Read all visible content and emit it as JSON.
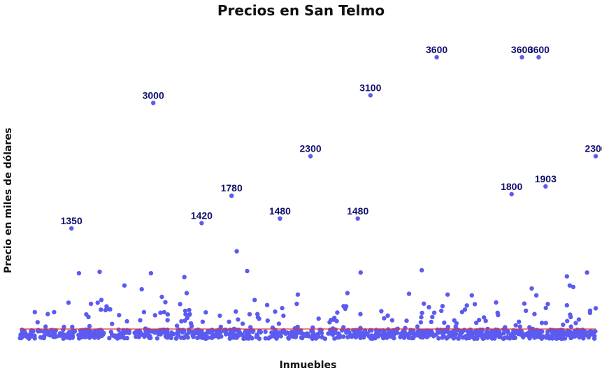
{
  "chart_data": {
    "type": "scatter",
    "title": "Precios en San Telmo",
    "xlabel": "Inmuebles",
    "ylabel": "Precio en miles de dólares",
    "xlim": [
      0,
      1000
    ],
    "ylim": [
      -80,
      3900
    ],
    "grid": false,
    "legend": "none",
    "colors": {
      "points": "#5b5bf0",
      "labels": "#10106b",
      "reference_line": "#e03030"
    },
    "reference_line": {
      "y": 0
    },
    "labeled_points": [
      {
        "x": 90,
        "y": 1350,
        "label": "1350"
      },
      {
        "x": 232,
        "y": 3000,
        "label": "3000"
      },
      {
        "x": 316,
        "y": 1420,
        "label": "1420"
      },
      {
        "x": 368,
        "y": 1780,
        "label": "1780"
      },
      {
        "x": 452,
        "y": 1480,
        "label": "1480"
      },
      {
        "x": 505,
        "y": 2300,
        "label": "2300"
      },
      {
        "x": 587,
        "y": 1480,
        "label": "1480"
      },
      {
        "x": 609,
        "y": 3100,
        "label": "3100"
      },
      {
        "x": 724,
        "y": 3600,
        "label": "3600"
      },
      {
        "x": 854,
        "y": 1800,
        "label": "1800"
      },
      {
        "x": 872,
        "y": 3600,
        "label": "3600"
      },
      {
        "x": 901,
        "y": 3600,
        "label": "3600"
      },
      {
        "x": 913,
        "y": 1903,
        "label": "1903"
      },
      {
        "x": 1000,
        "y": 2300,
        "label": "2300"
      }
    ],
    "points": [
      {
        "x": 103,
        "y": 760
      },
      {
        "x": 139,
        "y": 780
      },
      {
        "x": 228,
        "y": 760
      },
      {
        "x": 286,
        "y": 710
      },
      {
        "x": 395,
        "y": 790
      },
      {
        "x": 377,
        "y": 1050
      },
      {
        "x": 698,
        "y": 800
      },
      {
        "x": 592,
        "y": 770
      },
      {
        "x": 950,
        "y": 720
      },
      {
        "x": 985,
        "y": 770
      },
      {
        "x": 961,
        "y": 580
      },
      {
        "x": 212,
        "y": 550
      },
      {
        "x": 182,
        "y": 600
      },
      {
        "x": 247,
        "y": 450
      },
      {
        "x": 290,
        "y": 500
      },
      {
        "x": 408,
        "y": 410
      },
      {
        "x": 483,
        "y": 480
      },
      {
        "x": 569,
        "y": 500
      },
      {
        "x": 676,
        "y": 490
      },
      {
        "x": 743,
        "y": 480
      },
      {
        "x": 785,
        "y": 470
      },
      {
        "x": 889,
        "y": 560
      },
      {
        "x": 897,
        "y": 470
      },
      {
        "x": 955,
        "y": 600
      },
      {
        "x": 142,
        "y": 410
      },
      {
        "x": 60,
        "y": 250
      },
      {
        "x": 1000,
        "y": 300
      }
    ],
    "noise_band": {
      "y_min": -100,
      "y_max": 300,
      "count": 1000
    }
  }
}
